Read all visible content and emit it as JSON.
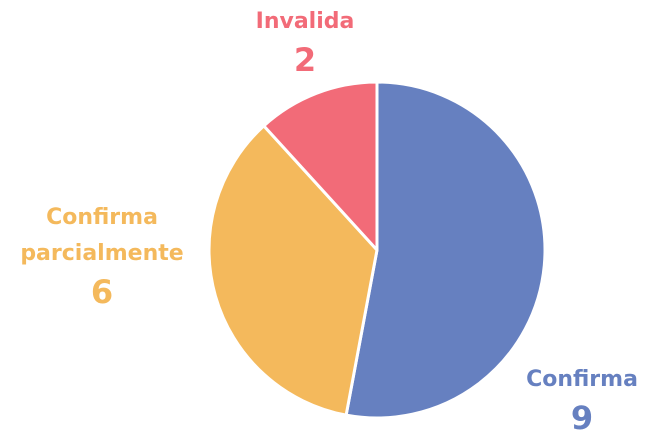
{
  "chart_data": {
    "type": "pie",
    "categories": [
      "Confirma",
      "Confirma parcialmente",
      "Invalida"
    ],
    "values": [
      9,
      6,
      2
    ],
    "colors": [
      "#6680c0",
      "#f4b95c",
      "#f26b78"
    ]
  }
}
